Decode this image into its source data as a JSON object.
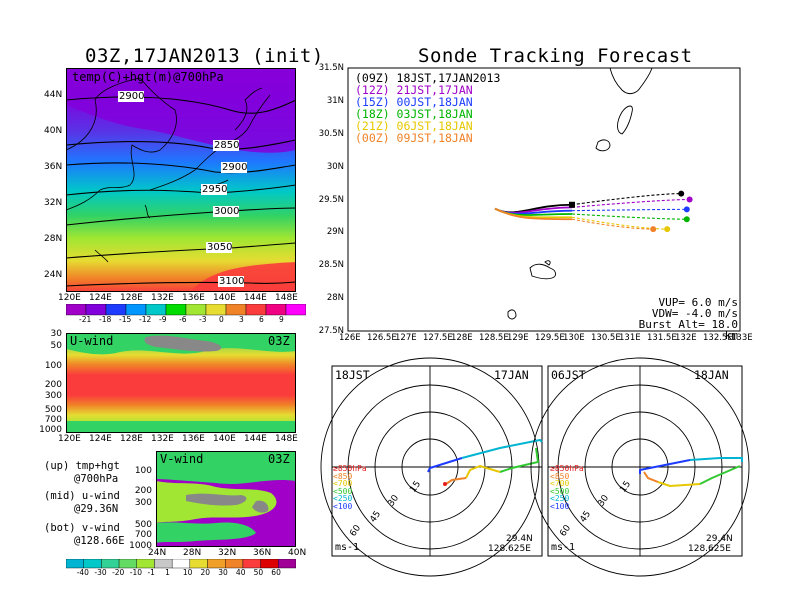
{
  "left_title": "03Z,17JAN2013 (init)",
  "right_title": "Sonde Tracking Forecast",
  "upper_map": {
    "label": "temp(C)+hgt(m)@700hPa",
    "lat_ticks": [
      "44N",
      "40N",
      "36N",
      "32N",
      "28N",
      "24N"
    ],
    "lon_ticks": [
      "120E",
      "124E",
      "128E",
      "132E",
      "136E",
      "140E",
      "144E",
      "148E"
    ],
    "contours": [
      "2900",
      "2850",
      "2900",
      "2950",
      "3000",
      "3050",
      "3100"
    ]
  },
  "temp_colorbar": {
    "labels": [
      "-21",
      "-18",
      "-15",
      "-12",
      "-9",
      "-6",
      "-3",
      "0",
      "3",
      "6",
      "9"
    ],
    "colors": [
      "#a000c8",
      "#8200dc",
      "#1e3cff",
      "#0096ff",
      "#00c8c8",
      "#00dc00",
      "#a0e632",
      "#e6dc32",
      "#f08228",
      "#fa3c3c",
      "#f00082",
      "#ff00ff"
    ]
  },
  "u_panel": {
    "label": "U-wind",
    "time": "03Z",
    "y_ticks": [
      "30",
      "50",
      "100",
      "200",
      "300",
      "500",
      "700",
      "1000"
    ],
    "x_ticks": [
      "120E",
      "124E",
      "128E",
      "132E",
      "136E",
      "140E",
      "144E",
      "148E"
    ]
  },
  "v_panel": {
    "label": "V-wind",
    "time": "03Z",
    "y_ticks": [
      "100",
      "200",
      "300",
      "500",
      "700",
      "1000"
    ],
    "x_ticks": [
      "24N",
      "28N",
      "32N",
      "36N",
      "40N"
    ]
  },
  "wind_colorbar": {
    "labels": [
      "-40",
      "-30",
      "-20",
      "-10",
      "-1",
      "1",
      "10",
      "20",
      "30",
      "40",
      "50",
      "60"
    ],
    "colors": [
      "#00b4d2",
      "#00c8c8",
      "#32d296",
      "#64dc64",
      "#a0e632",
      "#c8c8c8",
      "#ffffff",
      "#e6dc32",
      "#f0a028",
      "#f08228",
      "#fa3c3c",
      "#dc0000",
      "#a00096"
    ]
  },
  "notes": [
    {
      "key": "up",
      "l1": "(up) tmp+hgt",
      "l2": "@700hPa"
    },
    {
      "key": "mid",
      "l1": "(mid) u-wind",
      "l2": "@29.36N"
    },
    {
      "key": "bot",
      "l1": "(bot) v-wind",
      "l2": "@128.66E"
    }
  ],
  "track_map": {
    "lat_ticks": [
      "31.5N",
      "31N",
      "30.5N",
      "30N",
      "29.5N",
      "29N",
      "28.5N",
      "28N",
      "27.5N"
    ],
    "lon_ticks": [
      "126E",
      "126.5E",
      "127E",
      "127.5E",
      "128E",
      "128.5E",
      "129E",
      "129.5E",
      "130E",
      "130.5E",
      "131E",
      "131.5E",
      "132E",
      "132.5E",
      "133E"
    ],
    "legend": [
      {
        "run": "(09Z)",
        "time": "18JST,17JAN2013",
        "color": "#000000"
      },
      {
        "run": "(12Z)",
        "time": "21JST,17JAN",
        "color": "#a000c8"
      },
      {
        "run": "(15Z)",
        "time": "00JST,18JAN",
        "color": "#1e3cff"
      },
      {
        "run": "(18Z)",
        "time": "03JST,18JAN",
        "color": "#00b400"
      },
      {
        "run": "(21Z)",
        "time": "06JST,18JAN",
        "color": "#e6c800"
      },
      {
        "run": "(00Z)",
        "time": "09JST,18JAN",
        "color": "#f08228"
      }
    ],
    "params": [
      {
        "label": "VUP=",
        "value": "6.0 m/s"
      },
      {
        "label": "VDW=",
        "value": "-4.0 m/s"
      },
      {
        "label": "Burst Alt=",
        "value": "18.0 km"
      }
    ]
  },
  "hodographs": [
    {
      "left_label": "18JST",
      "right_label": "17JAN",
      "lat": "29.4N",
      "lon": "128.625E",
      "unit": "ms-1"
    },
    {
      "left_label": "06JST",
      "right_label": "18JAN",
      "lat": "29.4N",
      "lon": "128.625E",
      "unit": "ms-1"
    }
  ],
  "hodo_rings": [
    "15",
    "30",
    "45",
    "60"
  ],
  "hodo_legend": [
    {
      "text": "≥850hPa",
      "color": "#e61e1e"
    },
    {
      "text": "<850",
      "color": "#f08228"
    },
    {
      "text": "<700",
      "color": "#e6c800"
    },
    {
      "text": "<500",
      "color": "#32c832"
    },
    {
      "text": "<250",
      "color": "#00b4d2"
    },
    {
      "text": "<100",
      "color": "#1e3cff"
    }
  ],
  "chart_data": {
    "type": "line",
    "title": "Sonde Tracking Forecast",
    "x_range": [
      126,
      133
    ],
    "y_range": [
      27.5,
      31.5
    ],
    "launch_point": [
      128.625,
      29.36
    ],
    "series": [
      {
        "name": "(09Z) 18JST,17JAN2013",
        "color": "#000000",
        "end": [
          131.95,
          29.59
        ],
        "mid": [
          130.0,
          29.42
        ]
      },
      {
        "name": "(12Z) 21JST,17JAN",
        "color": "#a000c8",
        "end": [
          132.1,
          29.5
        ],
        "mid": [
          130.0,
          29.38
        ]
      },
      {
        "name": "(15Z) 00JST,18JAN",
        "color": "#1e3cff",
        "end": [
          132.05,
          29.35
        ],
        "mid": [
          130.0,
          29.33
        ]
      },
      {
        "name": "(18Z) 03JST,18JAN",
        "color": "#00b400",
        "end": [
          132.05,
          29.2
        ],
        "mid": [
          130.0,
          29.28
        ]
      },
      {
        "name": "(21Z) 06JST,18JAN",
        "color": "#e6c800",
        "end": [
          131.7,
          29.05
        ],
        "mid": [
          130.0,
          29.23
        ]
      },
      {
        "name": "(00Z) 09JST,18JAN",
        "color": "#f08228",
        "end": [
          131.45,
          29.05
        ],
        "mid": [
          130.0,
          29.2
        ]
      }
    ]
  }
}
